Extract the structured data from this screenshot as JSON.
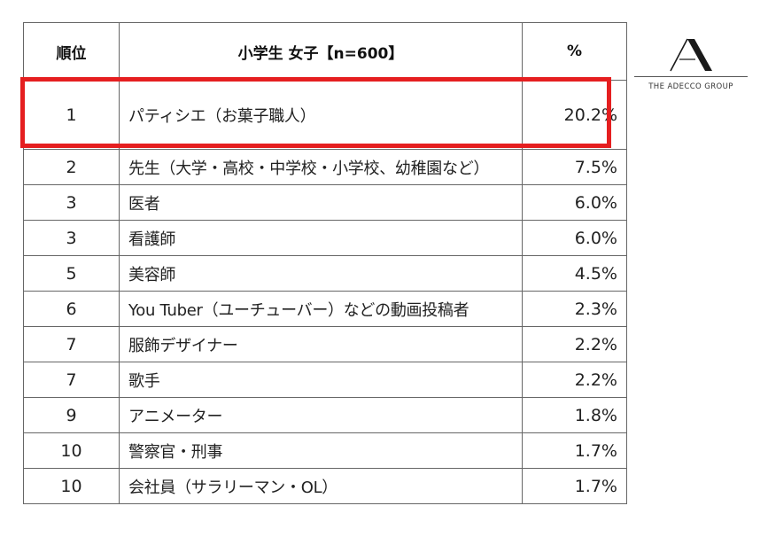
{
  "table": {
    "headers": {
      "rank": "順位",
      "job": "小学生 女子【n=600】",
      "percent": "%"
    },
    "rows": [
      {
        "rank": "1",
        "job": "パティシエ（お菓子職人）",
        "percent": "20.2%"
      },
      {
        "rank": "2",
        "job": "先生（大学・高校・中学校・小学校、幼稚園など）",
        "percent": "7.5%"
      },
      {
        "rank": "3",
        "job": "医者",
        "percent": "6.0%"
      },
      {
        "rank": "3",
        "job": "看護師",
        "percent": "6.0%"
      },
      {
        "rank": "5",
        "job": "美容師",
        "percent": "4.5%"
      },
      {
        "rank": "6",
        "job": "You Tuber（ユーチューバー）などの動画投稿者",
        "percent": "2.3%"
      },
      {
        "rank": "7",
        "job": "服飾デザイナー",
        "percent": "2.2%"
      },
      {
        "rank": "7",
        "job": "歌手",
        "percent": "2.2%"
      },
      {
        "rank": "9",
        "job": "アニメーター",
        "percent": "1.8%"
      },
      {
        "rank": "10",
        "job": "警察官・刑事",
        "percent": "1.7%"
      },
      {
        "rank": "10",
        "job": "会社員（サラリーマン・OL）",
        "percent": "1.7%"
      }
    ],
    "highlight_color": "#e51f20"
  },
  "logo": {
    "text": "THE ADECCO GROUP",
    "icon": "adecco-a-logo-icon"
  }
}
